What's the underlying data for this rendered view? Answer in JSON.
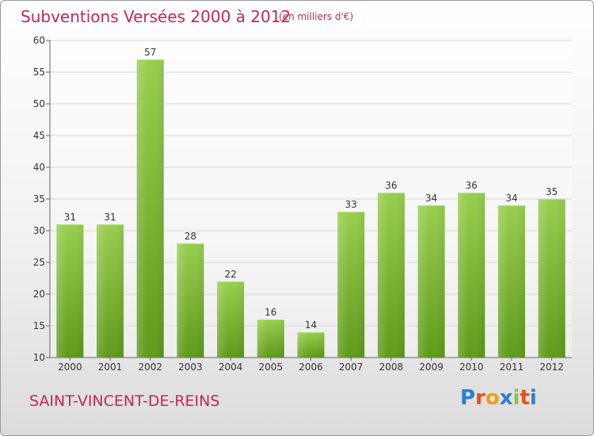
{
  "header": {
    "title": "Subventions Versées 2000 à 2012",
    "unit_note": "(en milliers d'€)"
  },
  "footer": {
    "location": "SAINT-VINCENT-DE-REINS",
    "brand": "Proxiti"
  },
  "colors": {
    "accent": "#c0285b",
    "bar_top": "#99cf4f",
    "bar_bottom": "#5e9a1a",
    "grid": "#d6d6d6"
  },
  "chart_data": {
    "type": "bar",
    "categories": [
      "2000",
      "2001",
      "2002",
      "2003",
      "2004",
      "2005",
      "2006",
      "2007",
      "2008",
      "2009",
      "2010",
      "2011",
      "2012"
    ],
    "values": [
      31,
      31,
      57,
      28,
      22,
      16,
      14,
      33,
      36,
      34,
      36,
      34,
      35
    ],
    "data_labels": [
      "31",
      "31",
      "57",
      "28",
      "22",
      "16",
      "14",
      "33",
      "36",
      "34",
      "36",
      "34",
      "35"
    ],
    "title": "Subventions Versées 2000 à 2012",
    "ylim": [
      10,
      60
    ],
    "yticks": [
      10,
      15,
      20,
      25,
      30,
      35,
      40,
      45,
      50,
      55,
      60
    ],
    "grid": true,
    "legend": "none"
  }
}
